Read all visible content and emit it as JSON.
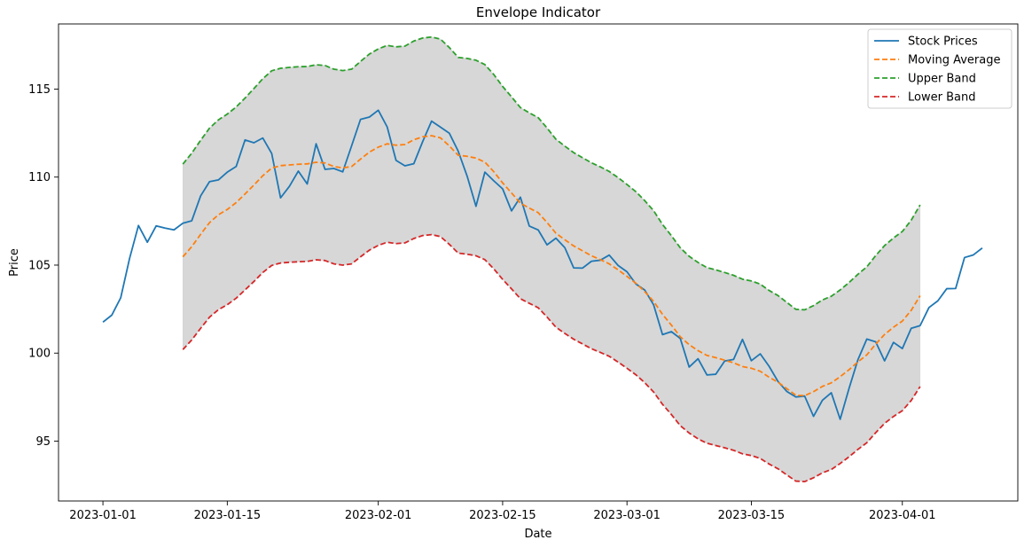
{
  "chart_data": {
    "type": "line",
    "title": "Envelope Indicator",
    "xlabel": "Date",
    "ylabel": "Price",
    "x_start": "2023-01-01",
    "x_end": "2023-04-10",
    "xlim": [
      "2022-12-27",
      "2023-04-14"
    ],
    "ylim": [
      91.6,
      118.7
    ],
    "x_ticks": [
      "2023-01-01",
      "2023-01-15",
      "2023-02-01",
      "2023-02-15",
      "2023-03-01",
      "2023-03-15",
      "2023-04-01"
    ],
    "y_ticks": [
      95,
      100,
      105,
      110,
      115
    ],
    "grid": false,
    "legend_position": "top-right",
    "fill_between": {
      "upper": "Upper Band",
      "lower": "Lower Band",
      "color": "#d3d3d3"
    },
    "series": [
      {
        "name": "Stock Prices",
        "color": "#1f77b4",
        "style": "solid",
        "start": "2023-01-01",
        "values": [
          101.76,
          102.16,
          103.14,
          105.38,
          107.25,
          106.3,
          107.23,
          107.1,
          107.0,
          107.38,
          107.52,
          108.93,
          109.74,
          109.84,
          110.28,
          110.6,
          112.11,
          111.95,
          112.22,
          111.34,
          108.82,
          109.48,
          110.34,
          109.61,
          111.89,
          110.44,
          110.49,
          110.3,
          111.78,
          113.28,
          113.41,
          113.8,
          112.85,
          110.95,
          110.64,
          110.76,
          112.02,
          113.18,
          112.84,
          112.49,
          111.47,
          110.06,
          108.34,
          110.28,
          109.79,
          109.33,
          108.08,
          108.86,
          107.22,
          107.0,
          106.15,
          106.53,
          105.99,
          104.84,
          104.83,
          105.22,
          105.28,
          105.57,
          104.98,
          104.62,
          103.93,
          103.58,
          102.74,
          101.05,
          101.22,
          100.83,
          99.21,
          99.68,
          98.76,
          98.8,
          99.55,
          99.64,
          100.78,
          99.57,
          99.96,
          99.25,
          98.39,
          97.82,
          97.51,
          97.56,
          96.41,
          97.32,
          97.75,
          96.24,
          98.0,
          99.63,
          100.8,
          100.64,
          99.56,
          100.61,
          100.26,
          101.41,
          101.56,
          102.59,
          102.97,
          103.66,
          103.67,
          105.43,
          105.58,
          105.97
        ]
      },
      {
        "name": "Moving Average",
        "color": "#ff7f0e",
        "style": "dashed",
        "start": "2023-01-10",
        "values": [
          105.47,
          106.05,
          106.75,
          107.41,
          107.86,
          108.16,
          108.55,
          109.04,
          109.55,
          110.08,
          110.51,
          110.65,
          110.69,
          110.73,
          110.75,
          110.84,
          110.8,
          110.6,
          110.52,
          110.6,
          111.02,
          111.42,
          111.7,
          111.89,
          111.81,
          111.85,
          112.12,
          112.29,
          112.35,
          112.23,
          111.77,
          111.24,
          111.18,
          111.08,
          110.85,
          110.31,
          109.67,
          109.1,
          108.52,
          108.24,
          107.98,
          107.42,
          106.81,
          106.44,
          106.09,
          105.81,
          105.53,
          105.31,
          105.07,
          104.73,
          104.36,
          103.97,
          103.49,
          102.94,
          102.2,
          101.59,
          100.93,
          100.48,
          100.14,
          99.87,
          99.74,
          99.6,
          99.45,
          99.24,
          99.14,
          98.97,
          98.63,
          98.35,
          97.98,
          97.61,
          97.58,
          97.81,
          98.11,
          98.31,
          98.66,
          99.06,
          99.5,
          99.9,
          100.51,
          101.06,
          101.47,
          101.82,
          102.43,
          103.26
        ]
      },
      {
        "name": "Upper Band",
        "color": "#2ca02c",
        "style": "dashed",
        "start": "2023-01-10",
        "values": [
          110.74,
          111.36,
          112.09,
          112.78,
          113.25,
          113.58,
          113.98,
          114.49,
          115.03,
          115.59,
          116.04,
          116.18,
          116.23,
          116.27,
          116.28,
          116.38,
          116.34,
          116.13,
          116.05,
          116.13,
          116.57,
          116.99,
          117.28,
          117.48,
          117.4,
          117.44,
          117.73,
          117.9,
          117.96,
          117.84,
          117.36,
          116.8,
          116.74,
          116.64,
          116.39,
          115.83,
          115.15,
          114.56,
          113.95,
          113.65,
          113.38,
          112.79,
          112.15,
          111.76,
          111.39,
          111.1,
          110.81,
          110.58,
          110.32,
          109.97,
          109.58,
          109.17,
          108.66,
          108.09,
          107.31,
          106.67,
          105.98,
          105.5,
          105.15,
          104.86,
          104.73,
          104.58,
          104.42,
          104.2,
          104.1,
          103.92,
          103.56,
          103.27,
          102.88,
          102.49,
          102.46,
          102.7,
          103.02,
          103.23,
          103.59,
          104.01,
          104.48,
          104.9,
          105.54,
          106.11,
          106.54,
          106.91,
          107.55,
          108.42
        ]
      },
      {
        "name": "Lower Band",
        "color": "#d62728",
        "style": "dashed",
        "start": "2023-01-10",
        "values": [
          100.2,
          100.75,
          101.41,
          102.04,
          102.47,
          102.75,
          103.12,
          103.59,
          104.07,
          104.58,
          104.98,
          105.12,
          105.16,
          105.19,
          105.21,
          105.3,
          105.26,
          105.07,
          105.0,
          105.07,
          105.47,
          105.85,
          106.12,
          106.3,
          106.22,
          106.26,
          106.51,
          106.68,
          106.73,
          106.62,
          106.18,
          105.68,
          105.62,
          105.53,
          105.31,
          104.79,
          104.19,
          103.65,
          103.09,
          102.83,
          102.58,
          102.05,
          101.47,
          101.12,
          100.79,
          100.52,
          100.25,
          100.04,
          99.82,
          99.49,
          99.14,
          98.77,
          98.32,
          97.79,
          97.09,
          96.51,
          95.88,
          95.46,
          95.13,
          94.88,
          94.75,
          94.62,
          94.48,
          94.28,
          94.18,
          94.02,
          93.7,
          93.43,
          93.08,
          92.73,
          92.7,
          92.92,
          93.2,
          93.39,
          93.73,
          94.11,
          94.53,
          94.91,
          95.48,
          96.01,
          96.4,
          96.73,
          97.31,
          98.1
        ]
      }
    ]
  }
}
